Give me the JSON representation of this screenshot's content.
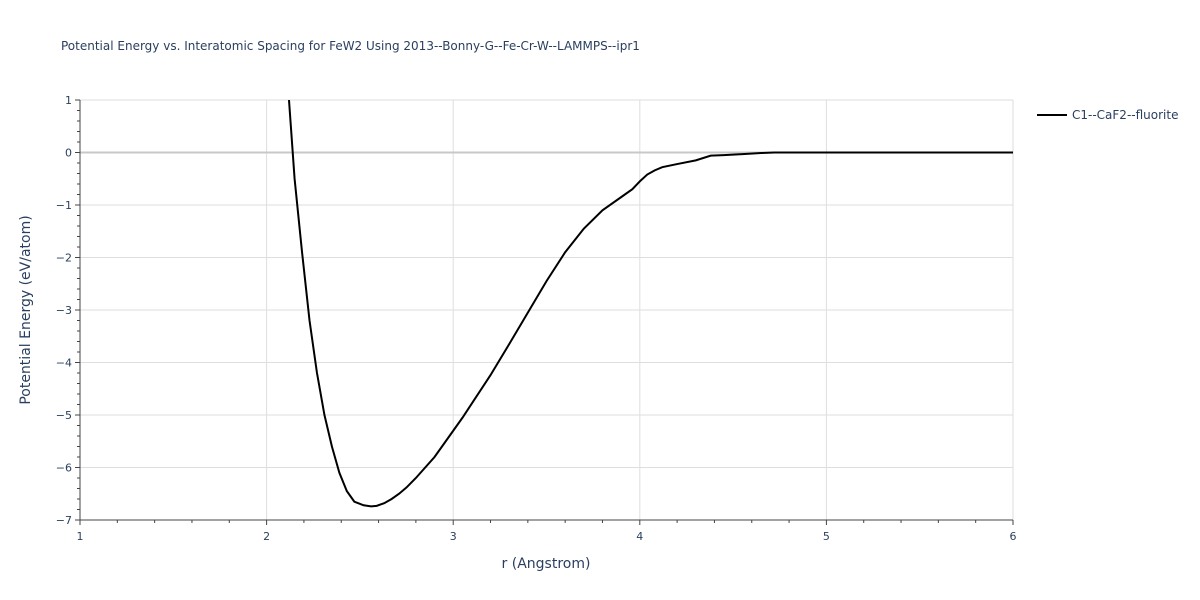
{
  "chart_data": {
    "type": "line",
    "title": "Potential Energy vs. Interatomic Spacing for FeW2 Using 2013--Bonny-G--Fe-Cr-W--LAMMPS--ipr1",
    "xlabel": "r (Angstrom)",
    "ylabel": "Potential Energy (eV/atom)",
    "xlim": [
      1,
      6
    ],
    "ylim": [
      -7,
      1
    ],
    "xticks": [
      1,
      2,
      3,
      4,
      5,
      6
    ],
    "xtick_labels": [
      "1",
      "2",
      "3",
      "4",
      "5",
      "6"
    ],
    "yticks": [
      1,
      0,
      -1,
      -2,
      -3,
      -4,
      -5,
      -6,
      -7
    ],
    "ytick_labels": [
      "1",
      "0",
      "−1",
      "−2",
      "−3",
      "−4",
      "−5",
      "−6",
      "−7"
    ],
    "grid": true,
    "legend_position": "top-right",
    "series": [
      {
        "name": "C1--CaF2--fluorite",
        "color": "#000000",
        "x": [
          2.12,
          2.15,
          2.19,
          2.23,
          2.27,
          2.31,
          2.35,
          2.39,
          2.43,
          2.47,
          2.52,
          2.56,
          2.59,
          2.63,
          2.67,
          2.71,
          2.75,
          2.8,
          2.85,
          2.9,
          2.95,
          3.0,
          3.05,
          3.1,
          3.2,
          3.3,
          3.4,
          3.5,
          3.6,
          3.7,
          3.8,
          3.9,
          3.96,
          4.0,
          4.04,
          4.08,
          4.12,
          4.2,
          4.3,
          4.38,
          4.45,
          4.55,
          4.65,
          4.72,
          4.8,
          5.0,
          5.5,
          6.0
        ],
        "y": [
          1.0,
          -0.5,
          -1.9,
          -3.2,
          -4.2,
          -5.0,
          -5.6,
          -6.1,
          -6.45,
          -6.65,
          -6.72,
          -6.74,
          -6.73,
          -6.68,
          -6.6,
          -6.5,
          -6.38,
          -6.2,
          -6.0,
          -5.8,
          -5.55,
          -5.3,
          -5.05,
          -4.78,
          -4.24,
          -3.65,
          -3.05,
          -2.45,
          -1.9,
          -1.45,
          -1.1,
          -0.85,
          -0.7,
          -0.55,
          -0.42,
          -0.34,
          -0.28,
          -0.22,
          -0.15,
          -0.06,
          -0.05,
          -0.03,
          -0.01,
          0.0,
          0.0,
          0.0,
          0.0,
          0.0
        ]
      }
    ]
  }
}
